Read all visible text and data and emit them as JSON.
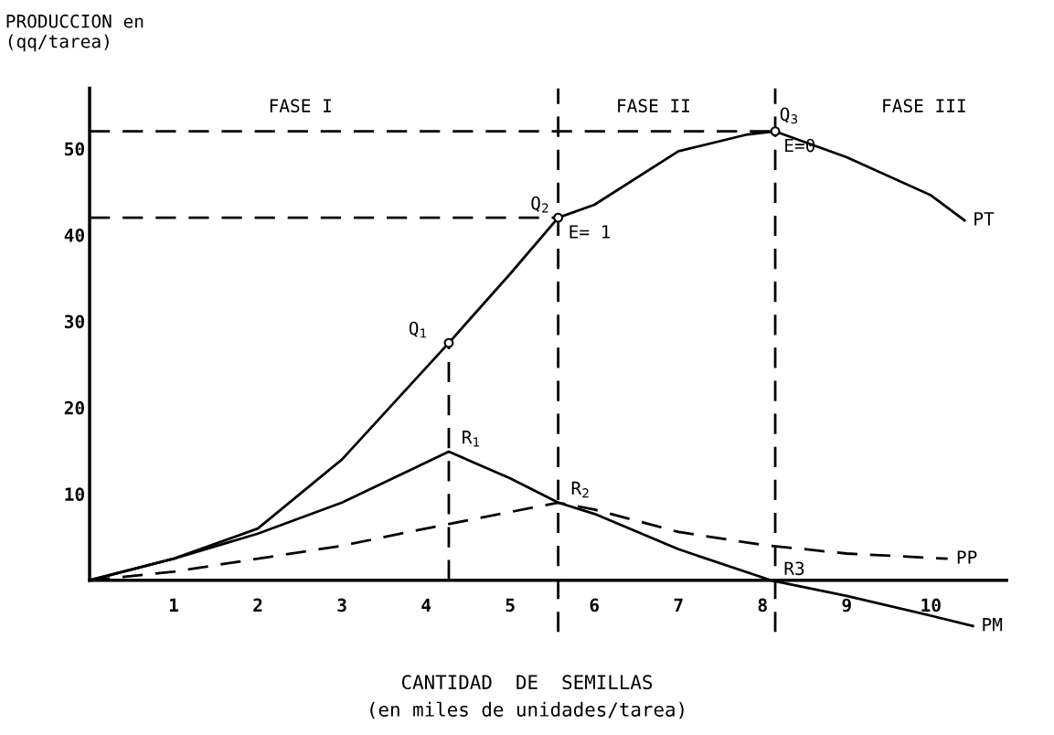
{
  "chart_data": {
    "type": "line",
    "ylabel": "PRODUCCION en\n(qq/tarea)",
    "xlabel": "CANTIDAD  DE  SEMILLAS\n(en miles de unidades/tarea)",
    "xlim": [
      0,
      10.9
    ],
    "ylim": [
      -6,
      57
    ],
    "xticks": [
      1,
      2,
      3,
      4,
      5,
      6,
      7,
      8,
      9,
      10
    ],
    "yticks": [
      10,
      20,
      30,
      40,
      50
    ],
    "grid": false,
    "series": [
      {
        "name": "PT",
        "color": "#000000",
        "line_style": "solid",
        "x": [
          0,
          1,
          2,
          3,
          4.27,
          5,
          5.57,
          6,
          7,
          7.8,
          8.15,
          9,
          10,
          10.4
        ],
        "values": [
          0,
          2.5,
          6,
          14,
          27.5,
          35.5,
          42,
          43.5,
          49.7,
          51.6,
          52,
          49,
          44.6,
          41.7
        ]
      },
      {
        "name": "PP",
        "color": "#000000",
        "line_style": "dashed",
        "x": [
          0,
          1,
          2,
          3,
          4,
          5.57,
          6,
          7,
          8,
          9,
          10.2
        ],
        "values": [
          0,
          1,
          2.5,
          4,
          6,
          9,
          8.2,
          5.6,
          4.1,
          3.1,
          2.5
        ]
      },
      {
        "name": "PM",
        "color": "#000000",
        "line_style": "solid",
        "x": [
          0,
          1,
          2,
          3,
          4.27,
          5,
          5.57,
          6,
          7,
          8.1,
          9,
          10,
          10.5
        ],
        "values": [
          0,
          2.5,
          5.4,
          9,
          14.9,
          11.8,
          9,
          7.7,
          3.6,
          0,
          -1.8,
          -4.1,
          -5.3
        ]
      },
      {
        "color": "#000000",
        "line_style": "dashed",
        "x": [
          0,
          8.15
        ],
        "values": [
          52,
          52
        ]
      },
      {
        "color": "#000000",
        "line_style": "dashed",
        "x": [
          0,
          5.57
        ],
        "values": [
          42,
          42
        ]
      },
      {
        "color": "#000000",
        "line_style": "dashed",
        "x": [
          4.27,
          4.27
        ],
        "values": [
          0,
          27.5
        ]
      },
      {
        "type": "scatter",
        "marker": "circle",
        "color": "#000000",
        "x": [
          4.27,
          5.57,
          8.15
        ],
        "values": [
          27.5,
          42,
          52
        ]
      }
    ],
    "ref_lines": [
      {
        "axis": "x",
        "value": 5.57,
        "line_style": "dashed",
        "color": "#000000"
      },
      {
        "axis": "x",
        "value": 8.15,
        "line_style": "dashed",
        "color": "#000000"
      }
    ],
    "annotations": [
      "FASE I",
      "FASE II",
      "FASE III",
      {
        "text": "Q$_{1}$",
        "x": 4.27,
        "y": 27.5
      },
      {
        "text": "Q$_{2}$",
        "x": 5.57,
        "y": 42
      },
      {
        "text": "Q$_{3}$",
        "x": 8.15,
        "y": 52
      },
      {
        "text": "E= 1",
        "x": 5.57,
        "y": 42
      },
      {
        "text": "E=0",
        "x": 8.15,
        "y": 52
      },
      {
        "text": "R$_{1}$",
        "x": 4.27,
        "y": 14.9
      },
      {
        "text": "R$_{2}$",
        "x": 5.57,
        "y": 9
      },
      {
        "text": "R3",
        "x": 8.1,
        "y": 0
      }
    ]
  }
}
